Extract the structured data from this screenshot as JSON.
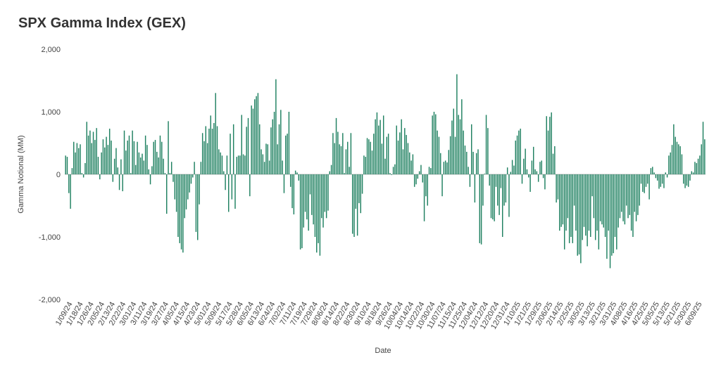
{
  "chart_data": {
    "type": "bar",
    "title": "SPX Gamma Index (GEX)",
    "xlabel": "Date",
    "ylabel": "Gamma Notional (MM)",
    "ylim": [
      -2000,
      2000
    ],
    "yticks": [
      2000,
      1000,
      0,
      -1000,
      -2000
    ],
    "ytick_labels": [
      "2,000",
      "1,000",
      "0",
      "-1,000",
      "-2,000"
    ],
    "grid": false,
    "legend": "none",
    "bar_color": "#1e8060",
    "xtick_labels": [
      "1/09/24",
      "1/18/24",
      "1/26/24",
      "2/05/24",
      "2/13/24",
      "2/22/24",
      "3/01/24",
      "3/11/24",
      "3/19/24",
      "3/27/24",
      "4/05/24",
      "4/15/24",
      "4/23/24",
      "5/01/24",
      "5/09/24",
      "5/17/24",
      "5/28/24",
      "6/05/24",
      "6/13/24",
      "6/24/24",
      "7/02/24",
      "7/11/24",
      "7/19/24",
      "7/29/24",
      "8/06/24",
      "8/14/24",
      "8/22/24",
      "8/30/24",
      "9/10/24",
      "9/18/24",
      "9/26/24",
      "10/04/24",
      "10/14/24",
      "10/22/24",
      "10/30/24",
      "11/07/24",
      "11/15/24",
      "11/25/24",
      "12/04/24",
      "12/12/24",
      "12/20/24",
      "12/31/24",
      "1/10/25",
      "1/21/25",
      "1/29/25",
      "2/06/25",
      "2/14/25",
      "2/25/25",
      "3/05/25",
      "3/13/25",
      "3/21/25",
      "3/31/25",
      "4/08/25",
      "4/16/25",
      "4/25/25",
      "5/05/25",
      "5/13/25",
      "5/21/25",
      "5/30/25",
      "6/09/25"
    ],
    "values": [
      300,
      280,
      -300,
      -550,
      100,
      520,
      350,
      500,
      420,
      480,
      20,
      -50,
      180,
      840,
      620,
      700,
      500,
      680,
      550,
      740,
      280,
      -80,
      350,
      560,
      430,
      600,
      470,
      730,
      540,
      -120,
      250,
      420,
      110,
      -250,
      240,
      -270,
      700,
      380,
      540,
      620,
      20,
      700,
      530,
      150,
      520,
      350,
      270,
      330,
      220,
      620,
      470,
      80,
      -160,
      130,
      520,
      550,
      360,
      270,
      620,
      520,
      250,
      20,
      -630,
      850,
      20,
      200,
      -120,
      -400,
      -600,
      -1000,
      -1100,
      -1200,
      -1250,
      -700,
      -560,
      -400,
      -290,
      -150,
      -50,
      200,
      -920,
      -1050,
      -480,
      200,
      660,
      530,
      770,
      500,
      730,
      940,
      730,
      820,
      1300,
      770,
      400,
      350,
      300,
      50,
      -250,
      300,
      -600,
      650,
      -400,
      800,
      -550,
      280,
      300,
      300,
      950,
      320,
      300,
      760,
      900,
      -350,
      1100,
      1050,
      1200,
      1250,
      1300,
      800,
      400,
      320,
      200,
      490,
      480,
      220,
      750,
      880,
      1000,
      1520,
      480,
      800,
      1030,
      220,
      -300,
      620,
      650,
      1000,
      -200,
      -540,
      -640,
      60,
      30,
      -100,
      -1200,
      -1180,
      -850,
      -600,
      -720,
      -900,
      -320,
      -650,
      -800,
      -1000,
      -1250,
      -1100,
      -1300,
      -700,
      -850,
      -600,
      -700,
      -580,
      50,
      150,
      660,
      500,
      900,
      680,
      480,
      450,
      660,
      20,
      400,
      520,
      120,
      660,
      -950,
      -1000,
      -550,
      -980,
      -460,
      -620,
      -310,
      300,
      280,
      580,
      560,
      520,
      380,
      650,
      880,
      990,
      780,
      870,
      490,
      940,
      250,
      600,
      650,
      20,
      -10,
      120,
      160,
      780,
      540,
      670,
      880,
      400,
      740,
      630,
      500,
      350,
      220,
      320,
      -200,
      -160,
      -70,
      50,
      150,
      -130,
      -750,
      -350,
      -500,
      120,
      100,
      940,
      1000,
      960,
      700,
      600,
      340,
      -350,
      200,
      220,
      190,
      390,
      610,
      860,
      1050,
      600,
      1600,
      950,
      880,
      1200,
      700,
      460,
      360,
      120,
      -200,
      800,
      360,
      -450,
      340,
      400,
      -1100,
      -1120,
      -500,
      10,
      950,
      740,
      -180,
      -700,
      -720,
      -750,
      -200,
      -500,
      -650,
      -220,
      -1000,
      -500,
      -450,
      110,
      -680,
      40,
      230,
      140,
      540,
      620,
      700,
      730,
      -150,
      250,
      410,
      80,
      -50,
      -280,
      220,
      440,
      80,
      50,
      -120,
      200,
      220,
      -60,
      -240,
      930,
      700,
      920,
      990,
      330,
      450,
      -450,
      -400,
      -900,
      -840,
      -800,
      -1200,
      -900,
      -700,
      -1100,
      -1000,
      -1100,
      -500,
      -900,
      -1300,
      -1280,
      -1420,
      -1050,
      -840,
      -980,
      -1150,
      -900,
      -1000,
      -350,
      -700,
      -1050,
      -900,
      -1200,
      -750,
      -800,
      -850,
      -1000,
      -1350,
      -900,
      -1500,
      -1300,
      -1260,
      -1000,
      -1200,
      -850,
      -700,
      -600,
      -750,
      -800,
      -500,
      -700,
      -650,
      -900,
      -1000,
      -600,
      -750,
      -650,
      -500,
      -150,
      -280,
      -300,
      -200,
      -150,
      -400,
      100,
      120,
      30,
      -60,
      -100,
      -230,
      -200,
      -150,
      -220,
      30,
      -50,
      300,
      350,
      470,
      800,
      600,
      520,
      480,
      450,
      320,
      -150,
      -220,
      -180,
      -200,
      -100,
      50,
      30,
      200,
      180,
      250,
      300,
      480,
      840,
      560
    ]
  }
}
